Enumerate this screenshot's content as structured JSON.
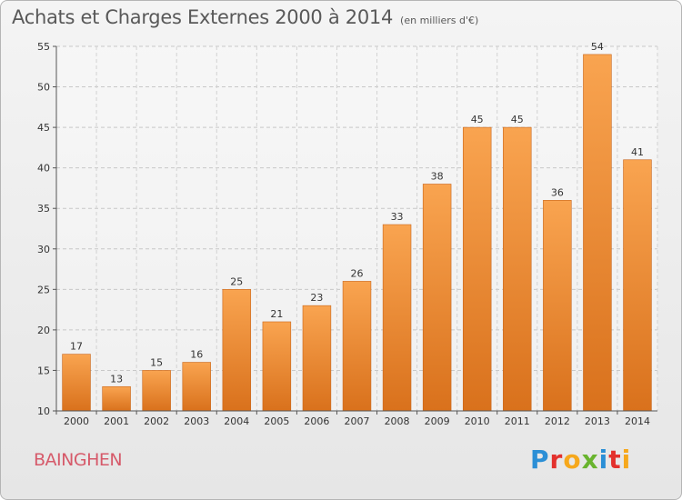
{
  "header": {
    "title": "Achats et Charges Externes 2000 à 2014",
    "unit": "(en milliers d'€)"
  },
  "commune": "BAINGHEN",
  "logo": {
    "letters": [
      "P",
      "r",
      "o",
      "x",
      "i",
      "t",
      "i"
    ],
    "colors": [
      "#2b8fd6",
      "#e3312d",
      "#f6a81c",
      "#69b42e",
      "#2b8fd6",
      "#e3312d",
      "#f6a81c"
    ]
  },
  "chart_data": {
    "type": "bar",
    "categories": [
      "2000",
      "2001",
      "2002",
      "2003",
      "2004",
      "2005",
      "2006",
      "2007",
      "2008",
      "2009",
      "2010",
      "2011",
      "2012",
      "2013",
      "2014"
    ],
    "values": [
      17,
      13,
      15,
      16,
      25,
      21,
      23,
      26,
      33,
      38,
      45,
      45,
      36,
      54,
      41
    ],
    "title": "Achats et Charges Externes 2000 à 2014",
    "xlabel": "",
    "ylabel": "",
    "ylim": [
      10,
      55
    ],
    "yticks": [
      10,
      15,
      20,
      25,
      30,
      35,
      40,
      45,
      50,
      55
    ],
    "grid": true,
    "bar_color": "#f0913a"
  }
}
